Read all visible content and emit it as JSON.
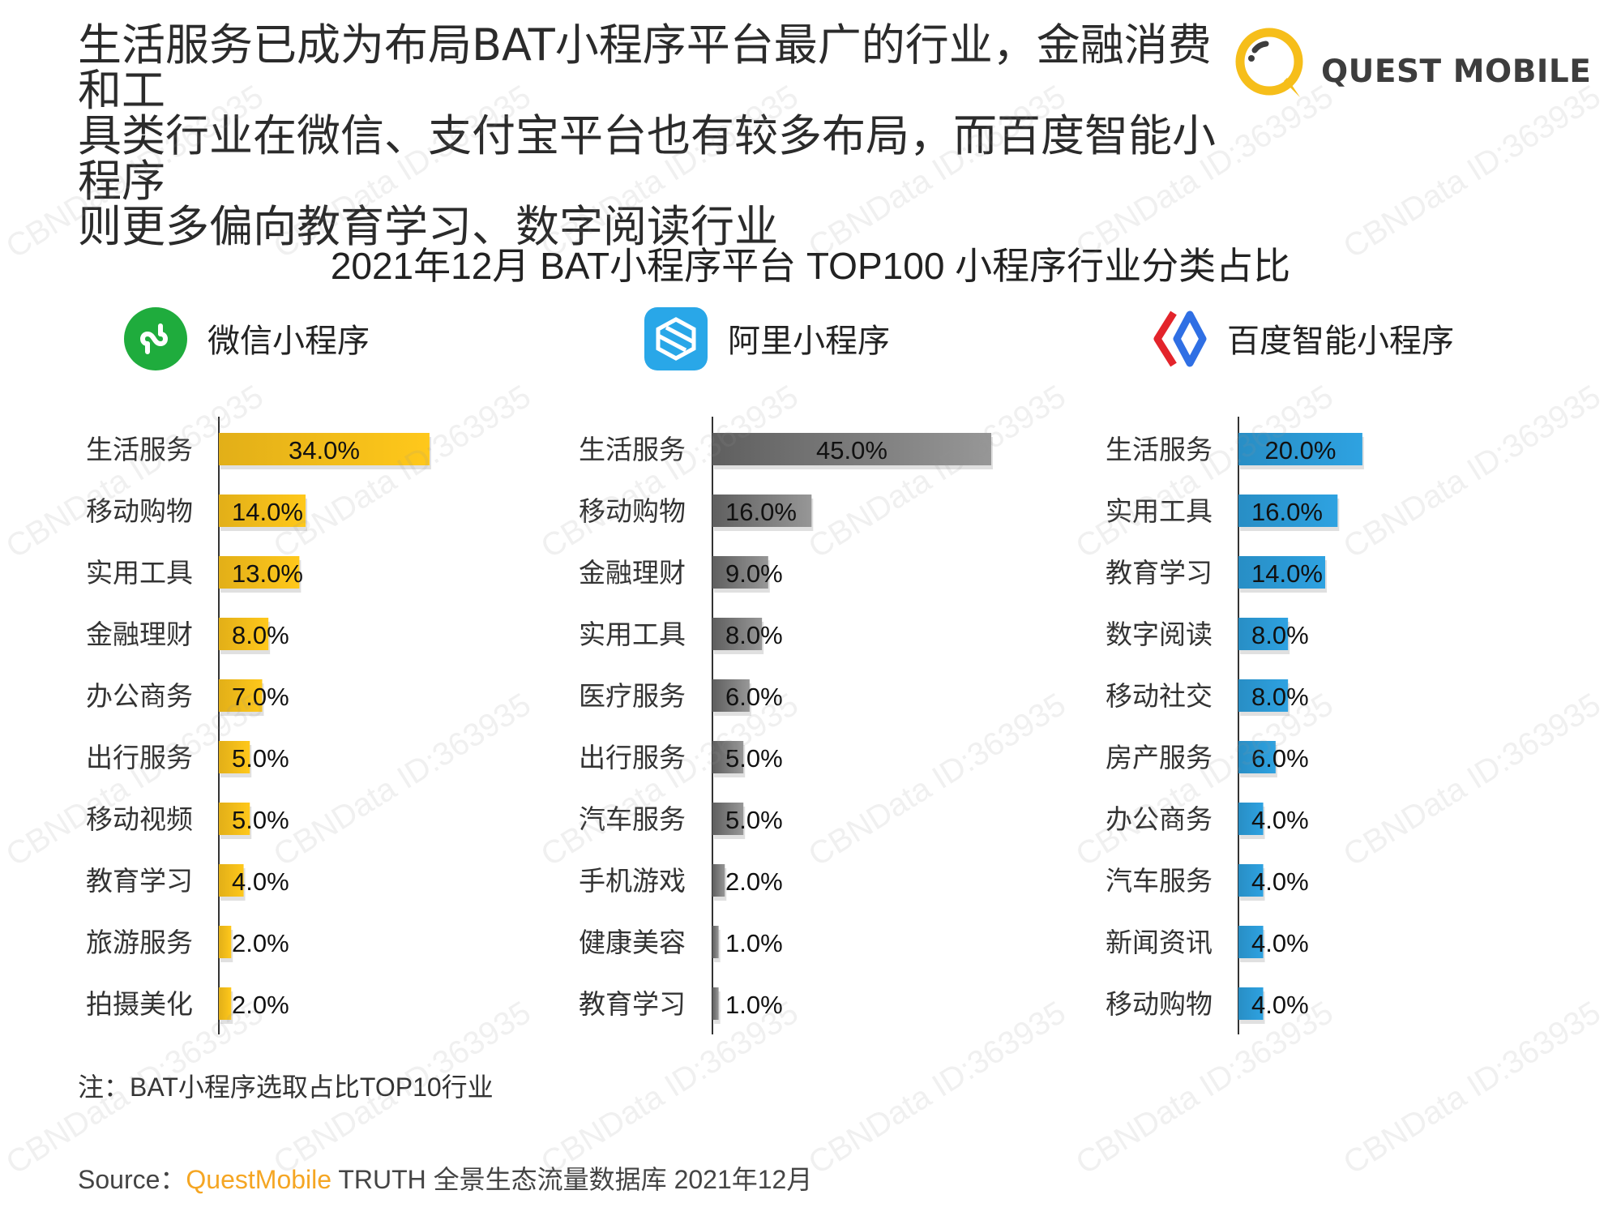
{
  "headline": [
    "生活服务已成为布局BAT小程序平台最广的行业，金融消费和工",
    "具类行业在微信、支付宝平台也有较多布局，而百度智能小程序",
    "则更多偏向教育学习、数字阅读行业"
  ],
  "brand": {
    "name": "QUEST MOBILE",
    "icon": "quest-mobile-logo-icon"
  },
  "panels": [
    {
      "name": "微信小程序",
      "icon": "wechat-mini-program-icon"
    },
    {
      "name": "阿里小程序",
      "icon": "alipay-mini-program-icon"
    },
    {
      "name": "百度智能小程序",
      "icon": "baidu-smart-program-icon"
    }
  ],
  "note": "注：BAT小程序选取占比TOP10行业",
  "source": {
    "prefix": "Source：",
    "brand": "QuestMobile",
    "text": " TRUTH 全景生态流量数据库 2021年12月"
  },
  "watermark": "CBNData ID:363935",
  "colors": {
    "wechat": "#f6be1a",
    "ali": "#7e7e7e",
    "baidu": "#2c9ad6"
  },
  "chart_data": [
    {
      "type": "bar",
      "orientation": "horizontal",
      "title": "2021年12月 BAT小程序平台 TOP100 小程序行业分类占比",
      "series_name": "微信小程序",
      "unit": "%",
      "categories": [
        "生活服务",
        "移动购物",
        "实用工具",
        "金融理财",
        "办公商务",
        "出行服务",
        "移动视频",
        "教育学习",
        "旅游服务",
        "拍摄美化"
      ],
      "values": [
        34.0,
        14.0,
        13.0,
        8.0,
        7.0,
        5.0,
        5.0,
        4.0,
        2.0,
        2.0
      ],
      "labels": [
        "34.0%",
        "14.0%",
        "13.0%",
        "8.0%",
        "7.0%",
        "5.0%",
        "5.0%",
        "4.0%",
        "2.0%",
        "2.0%"
      ],
      "xlim": [
        0,
        45
      ]
    },
    {
      "type": "bar",
      "orientation": "horizontal",
      "title": "2021年12月 BAT小程序平台 TOP100 小程序行业分类占比",
      "series_name": "阿里小程序",
      "unit": "%",
      "categories": [
        "生活服务",
        "移动购物",
        "金融理财",
        "实用工具",
        "医疗服务",
        "出行服务",
        "汽车服务",
        "手机游戏",
        "健康美容",
        "教育学习"
      ],
      "values": [
        45.0,
        16.0,
        9.0,
        8.0,
        6.0,
        5.0,
        5.0,
        2.0,
        1.0,
        1.0
      ],
      "labels": [
        "45.0%",
        "16.0%",
        "9.0%",
        "8.0%",
        "6.0%",
        "5.0%",
        "5.0%",
        "2.0%",
        "1.0%",
        "1.0%"
      ],
      "xlim": [
        0,
        45
      ]
    },
    {
      "type": "bar",
      "orientation": "horizontal",
      "title": "2021年12月 BAT小程序平台 TOP100 小程序行业分类占比",
      "series_name": "百度智能小程序",
      "unit": "%",
      "categories": [
        "生活服务",
        "实用工具",
        "教育学习",
        "数字阅读",
        "移动社交",
        "房产服务",
        "办公商务",
        "汽车服务",
        "新闻资讯",
        "移动购物"
      ],
      "values": [
        20.0,
        16.0,
        14.0,
        8.0,
        8.0,
        6.0,
        4.0,
        4.0,
        4.0,
        4.0
      ],
      "labels": [
        "20.0%",
        "16.0%",
        "14.0%",
        "8.0%",
        "8.0%",
        "6.0%",
        "4.0%",
        "4.0%",
        "4.0%",
        "4.0%"
      ],
      "xlim": [
        0,
        45
      ]
    }
  ]
}
